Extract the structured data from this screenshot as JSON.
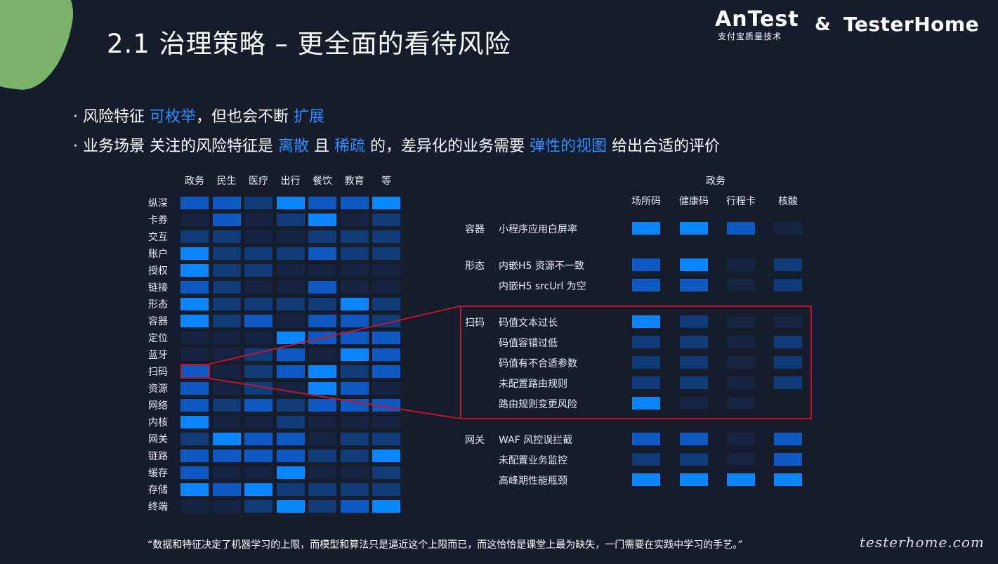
{
  "title": "2.1 治理策略 – 更全面的看待风险",
  "logos": {
    "antest_main": "AnTest",
    "antest_sub": "支付宝质量技术",
    "ampersand": "&",
    "testerhome": "TesterHome"
  },
  "bullet1": {
    "prefix": "· 风险特征 ",
    "h1": "可枚举",
    "mid": "，但也会不断 ",
    "h2": "扩展"
  },
  "bullet2": {
    "p1": "· 业务场景 关注的风险特征是 ",
    "h1": "离散",
    "p2": " 且 ",
    "h2": "稀疏",
    "p3": " 的，差异化的业务需要 ",
    "h3": "弹性的视图",
    "p4": " 给出合适的评价"
  },
  "matrix": {
    "columns": [
      "政务",
      "民生",
      "医疗",
      "出行",
      "餐饮",
      "教育",
      "等"
    ],
    "rows": [
      "纵深",
      "卡券",
      "交互",
      "账户",
      "授权",
      "链接",
      "形态",
      "容器",
      "定位",
      "蓝牙",
      "扫码",
      "资源",
      "网络",
      "内核",
      "网关",
      "链路",
      "缓存",
      "存储",
      "终端"
    ],
    "levels": [
      [
        3,
        3,
        2,
        4,
        3,
        3,
        4
      ],
      [
        1,
        3,
        1,
        2,
        4,
        1,
        2
      ],
      [
        2,
        2,
        1,
        1,
        2,
        2,
        2
      ],
      [
        4,
        2,
        2,
        2,
        3,
        2,
        2
      ],
      [
        4,
        2,
        2,
        1,
        1,
        1,
        1
      ],
      [
        3,
        2,
        1,
        1,
        3,
        1,
        1
      ],
      [
        4,
        2,
        2,
        2,
        2,
        4,
        2
      ],
      [
        4,
        2,
        3,
        1,
        3,
        3,
        2
      ],
      [
        1,
        1,
        1,
        4,
        3,
        3,
        3
      ],
      [
        1,
        1,
        2,
        3,
        1,
        4,
        3
      ],
      [
        3,
        1,
        2,
        3,
        4,
        2,
        3
      ],
      [
        3,
        1,
        2,
        1,
        4,
        3,
        1
      ],
      [
        3,
        2,
        3,
        2,
        3,
        3,
        3
      ],
      [
        4,
        1,
        1,
        2,
        1,
        1,
        1
      ],
      [
        2,
        4,
        3,
        3,
        1,
        2,
        2
      ],
      [
        3,
        3,
        3,
        3,
        2,
        2,
        4
      ],
      [
        3,
        1,
        1,
        4,
        1,
        1,
        2
      ],
      [
        4,
        3,
        4,
        2,
        2,
        2,
        2
      ],
      [
        1,
        1,
        2,
        4,
        2,
        3,
        4
      ]
    ]
  },
  "detail": {
    "group": "政务",
    "columns": [
      "场所码",
      "健康码",
      "行程卡",
      "核酸"
    ],
    "sections": [
      {
        "category": "容器",
        "items": [
          {
            "label": "小程序应用白屏率",
            "levels": [
              4,
              4,
              3,
              1
            ]
          }
        ]
      },
      {
        "category": "形态",
        "items": [
          {
            "label": "内嵌H5 资源不一致",
            "levels": [
              3,
              4,
              1,
              2
            ]
          },
          {
            "label": "内嵌H5 srcUrl 为空",
            "levels": [
              3,
              3,
              1,
              2
            ]
          }
        ]
      },
      {
        "category": "扫码",
        "items": [
          {
            "label": "码值文本过长",
            "levels": [
              4,
              2,
              1,
              1
            ]
          },
          {
            "label": "码值容错过低",
            "levels": [
              2,
              2,
              1,
              2
            ]
          },
          {
            "label": "码值有不合适参数",
            "levels": [
              2,
              2,
              1,
              2
            ]
          },
          {
            "label": "未配置路由规则",
            "levels": [
              2,
              2,
              1,
              2
            ]
          },
          {
            "label": "路由规则变更风险",
            "levels": [
              4,
              1,
              1,
              0
            ]
          }
        ]
      },
      {
        "category": "网关",
        "items": [
          {
            "label": "WAF 风控误拦截",
            "levels": [
              3,
              3,
              1,
              3
            ]
          },
          {
            "label": "未配置业务监控",
            "levels": [
              2,
              2,
              1,
              3
            ]
          },
          {
            "label": "高峰期性能瓶颈",
            "levels": [
              4,
              4,
              4,
              4
            ]
          }
        ]
      }
    ]
  },
  "colors": {
    "background": "#151c2b",
    "highlight_text": "#2f8dff",
    "highlight_box": "#c0152b",
    "blob": "#7ab36c",
    "level_0": "#141d2e",
    "level_1": "#152340",
    "level_2": "#113b78",
    "level_3": "#0f5ac2",
    "level_4": "#0a84ff"
  },
  "quote": "“数据和特征决定了机器学习的上限，而模型和算法只是逼近这个上限而已，而这恰恰是课堂上最为缺失，一门需要在实践中学习的手艺。”",
  "watermark": "testerhome.com"
}
